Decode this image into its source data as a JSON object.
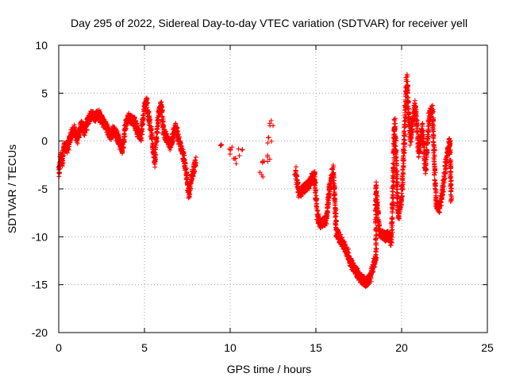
{
  "chart_data": {
    "type": "scatter",
    "title": "Day 295 of 2022, Sidereal Day-to-day VTEC variation (SDTVAR) for receiver yell",
    "xlabel": "GPS time / hours",
    "ylabel": "SDTVAR / TECUs",
    "xlim": [
      0,
      25
    ],
    "ylim": [
      -20,
      10
    ],
    "xticks": [
      0,
      5,
      10,
      15,
      20,
      25
    ],
    "yticks": [
      -20,
      -15,
      -10,
      -5,
      0,
      5,
      10
    ],
    "grid": true,
    "marker": "plus",
    "color": "#ff0000",
    "series": [
      {
        "name": "SDTVAR",
        "anchors": [
          [
            0.0,
            -3.5
          ],
          [
            0.1,
            -1.5
          ],
          [
            0.2,
            -2.5
          ],
          [
            0.3,
            -0.5
          ],
          [
            0.5,
            -0.8
          ],
          [
            0.7,
            0.5
          ],
          [
            0.9,
            1.2
          ],
          [
            1.1,
            0.2
          ],
          [
            1.3,
            1.8
          ],
          [
            1.5,
            1.0
          ],
          [
            1.7,
            2.2
          ],
          [
            1.9,
            2.8
          ],
          [
            2.1,
            2.5
          ],
          [
            2.3,
            2.9
          ],
          [
            2.5,
            2.2
          ],
          [
            2.8,
            1.5
          ],
          [
            3.0,
            0.5
          ],
          [
            3.2,
            1.2
          ],
          [
            3.5,
            0.2
          ],
          [
            3.7,
            -1.0
          ],
          [
            3.9,
            1.8
          ],
          [
            4.1,
            2.5
          ],
          [
            4.4,
            2.0
          ],
          [
            4.6,
            1.0
          ],
          [
            4.8,
            0.5
          ],
          [
            5.0,
            3.5
          ],
          [
            5.1,
            4.2
          ],
          [
            5.3,
            2.0
          ],
          [
            5.5,
            -0.5
          ],
          [
            5.6,
            -2.5
          ],
          [
            5.8,
            2.5
          ],
          [
            6.0,
            3.8
          ],
          [
            6.1,
            1.0
          ],
          [
            6.3,
            0.2
          ],
          [
            6.5,
            -0.5
          ],
          [
            6.8,
            1.5
          ],
          [
            7.0,
            0.0
          ],
          [
            7.2,
            -1.0
          ],
          [
            7.4,
            -3.0
          ],
          [
            7.6,
            -5.5
          ],
          [
            7.8,
            -3.5
          ],
          [
            8.0,
            -2.0
          ]
        ],
        "anchors_mid": [
          [
            9.5,
            -0.2
          ],
          [
            10.0,
            -1.0
          ],
          [
            10.3,
            -2.0
          ],
          [
            10.6,
            -1.2
          ],
          [
            11.8,
            -3.5
          ],
          [
            12.0,
            -2.5
          ],
          [
            12.3,
            -1.8
          ],
          [
            12.3,
            0.0
          ],
          [
            12.4,
            2.0
          ]
        ],
        "anchors_late": [
          [
            13.8,
            -3.0
          ],
          [
            14.0,
            -5.5
          ],
          [
            14.3,
            -5.0
          ],
          [
            14.6,
            -4.5
          ],
          [
            14.9,
            -3.5
          ],
          [
            15.1,
            -8.0
          ],
          [
            15.3,
            -8.8
          ],
          [
            15.6,
            -8.2
          ],
          [
            15.8,
            -5.0
          ],
          [
            16.0,
            -3.0
          ],
          [
            16.2,
            -9.5
          ],
          [
            16.5,
            -10.5
          ],
          [
            16.8,
            -11.5
          ],
          [
            17.0,
            -12.5
          ],
          [
            17.3,
            -13.5
          ],
          [
            17.6,
            -14.3
          ],
          [
            17.9,
            -14.8
          ],
          [
            18.2,
            -14.2
          ],
          [
            18.5,
            -12.0
          ],
          [
            18.5,
            -4.5
          ],
          [
            18.7,
            -9.5
          ],
          [
            19.0,
            -10.0
          ],
          [
            19.2,
            -9.8
          ],
          [
            19.4,
            -10.5
          ],
          [
            19.6,
            2.0
          ],
          [
            19.8,
            -8.0
          ],
          [
            20.0,
            -6.0
          ],
          [
            20.2,
            2.0
          ],
          [
            20.3,
            6.5
          ],
          [
            20.5,
            0.0
          ],
          [
            20.8,
            4.0
          ],
          [
            21.0,
            -1.5
          ],
          [
            21.2,
            1.5
          ],
          [
            21.4,
            -3.0
          ],
          [
            21.6,
            2.5
          ],
          [
            21.8,
            3.5
          ],
          [
            22.0,
            -6.5
          ],
          [
            22.2,
            -7.0
          ],
          [
            22.4,
            -5.0
          ],
          [
            22.6,
            -2.0
          ],
          [
            22.8,
            0.0
          ],
          [
            22.9,
            -6.5
          ]
        ]
      }
    ]
  }
}
